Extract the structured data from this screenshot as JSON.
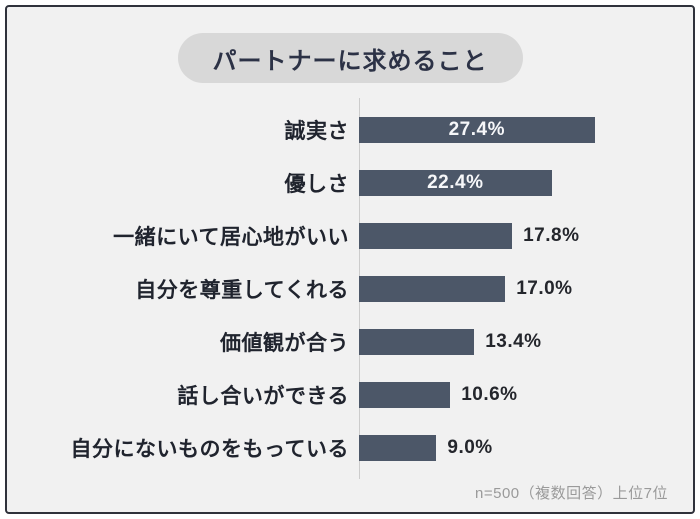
{
  "title": "パートナーに求めること",
  "footnote": "n=500（複数回答）上位7位",
  "colors": {
    "bar": "#4c5768",
    "background": "#f1f1f1",
    "frame_border": "#2f323b",
    "pill_bg": "#d8d8d8",
    "title_text": "#2c3246",
    "category_text": "#20242e",
    "value_inside_text": "#f6f7f9",
    "value_outside_text": "#24262c",
    "footnote_text": "#9a9a9a",
    "axis_line": "#cccccc"
  },
  "chart_data": {
    "type": "bar",
    "orientation": "horizontal",
    "title": "パートナーに求めること",
    "categories": [
      "誠実さ",
      "優しさ",
      "一緒にいて居心地がいい",
      "自分を尊重してくれる",
      "価値観が合う",
      "話し合いができる",
      "自分にないものをもっている"
    ],
    "values": [
      27.4,
      22.4,
      17.8,
      17.0,
      13.4,
      10.6,
      9.0
    ],
    "value_labels": [
      "27.4%",
      "22.4%",
      "17.8%",
      "17.0%",
      "13.4%",
      "10.6%",
      "9.0%"
    ],
    "label_inside": [
      true,
      true,
      false,
      false,
      false,
      false,
      false
    ],
    "unit": "%",
    "xlim": [
      0,
      30
    ],
    "grid": false,
    "legend": false,
    "annotation": "n=500（複数回答）上位7位"
  }
}
